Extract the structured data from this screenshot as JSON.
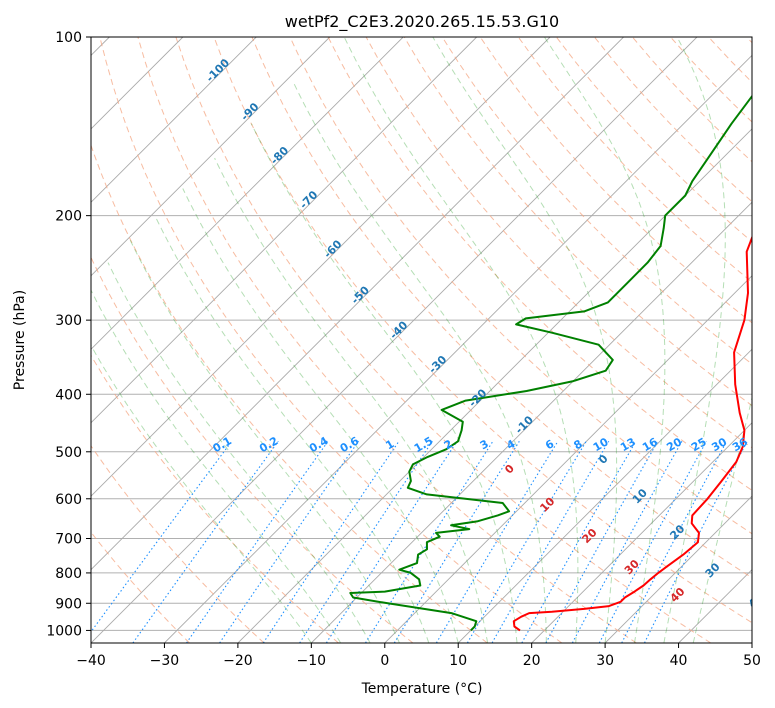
{
  "chart_data": {
    "type": "line",
    "subtype": "skew-T log-P diagram",
    "title": "wetPf2_C2E3.2020.265.15.53.G10",
    "xlabel": "Temperature (°C)",
    "ylabel": "Pressure (hPa)",
    "xlim": [
      -40,
      50
    ],
    "ylim": [
      1050,
      100
    ],
    "y_scale": "log",
    "x_ticks": [
      "−40",
      "−30",
      "−20",
      "−10",
      "0",
      "10",
      "20",
      "30",
      "40",
      "50"
    ],
    "y_ticks": [
      "100",
      "200",
      "300",
      "400",
      "500",
      "600",
      "700",
      "800",
      "900",
      "1000"
    ],
    "y_tick_values": [
      100,
      200,
      300,
      400,
      500,
      600,
      700,
      800,
      900,
      1000
    ],
    "grid": true,
    "colors": {
      "temperature": "#ff0000",
      "dewpoint": "#008000",
      "dry_adiabat": "#1f77b4",
      "moist_adiabat": "#d62728",
      "mixing_ratio": "#1e90ff",
      "isotherm": "#999999"
    },
    "series": [
      {
        "id": "temperature",
        "color": "#ff0000",
        "points": [
          [
            16.7,
            1000
          ],
          [
            15.4,
            985
          ],
          [
            14.6,
            965
          ],
          [
            15.0,
            948
          ],
          [
            15.6,
            935
          ],
          [
            18.5,
            930
          ],
          [
            22.5,
            920
          ],
          [
            25.5,
            910
          ],
          [
            26.5,
            895
          ],
          [
            26.5,
            880
          ],
          [
            27.0,
            860
          ],
          [
            27.4,
            840
          ],
          [
            27.5,
            820
          ],
          [
            27.7,
            800
          ],
          [
            28.0,
            780
          ],
          [
            28.6,
            745
          ],
          [
            28.9,
            710
          ],
          [
            27.8,
            685
          ],
          [
            25.5,
            660
          ],
          [
            24.5,
            640
          ],
          [
            24.3,
            600
          ],
          [
            23.8,
            560
          ],
          [
            23.2,
            520
          ],
          [
            22.0,
            490
          ],
          [
            20.0,
            460
          ],
          [
            17.0,
            430
          ],
          [
            12.5,
            385
          ],
          [
            8.0,
            340
          ],
          [
            5.0,
            300
          ],
          [
            1.8,
            270
          ],
          [
            -4.0,
            230
          ],
          [
            -6.5,
            205
          ],
          [
            -8.0,
            190
          ],
          [
            -11.0,
            170
          ],
          [
            -14.5,
            150
          ],
          [
            -17.5,
            135
          ],
          [
            -19.5,
            125
          ],
          [
            -19.0,
            120
          ],
          [
            -17.5,
            115
          ],
          [
            -16.0,
            108
          ],
          [
            -15.5,
            100
          ]
        ]
      },
      {
        "id": "dewpoint",
        "color": "#008000",
        "points": [
          [
            10.0,
            1000
          ],
          [
            10.0,
            985
          ],
          [
            9.5,
            965
          ],
          [
            5.0,
            935
          ],
          [
            -5.0,
            900
          ],
          [
            -10.5,
            880
          ],
          [
            -11.5,
            865
          ],
          [
            -7.0,
            860
          ],
          [
            -3.0,
            840
          ],
          [
            -4.0,
            820
          ],
          [
            -6.0,
            800
          ],
          [
            -8.0,
            790
          ],
          [
            -6.5,
            770
          ],
          [
            -7.5,
            745
          ],
          [
            -7.0,
            730
          ],
          [
            -8.0,
            710
          ],
          [
            -7.0,
            695
          ],
          [
            -8.0,
            685
          ],
          [
            -4.0,
            675
          ],
          [
            -7.0,
            665
          ],
          [
            -4.0,
            655
          ],
          [
            -2.0,
            640
          ],
          [
            -1.0,
            630
          ],
          [
            -3.0,
            610
          ],
          [
            -14.5,
            590
          ],
          [
            -18.0,
            575
          ],
          [
            -18.5,
            560
          ],
          [
            -20.0,
            540
          ],
          [
            -20.5,
            525
          ],
          [
            -19.5,
            510
          ],
          [
            -18.0,
            495
          ],
          [
            -17.5,
            480
          ],
          [
            -18.5,
            460
          ],
          [
            -19.5,
            445
          ],
          [
            -24.0,
            425
          ],
          [
            -22.0,
            410
          ],
          [
            -15.0,
            395
          ],
          [
            -10.0,
            380
          ],
          [
            -7.0,
            365
          ],
          [
            -7.5,
            350
          ],
          [
            -11.5,
            330
          ],
          [
            -19.5,
            315
          ],
          [
            -25.5,
            305
          ],
          [
            -25.0,
            298
          ],
          [
            -18.0,
            290
          ],
          [
            -16.0,
            280
          ],
          [
            -16.0,
            260
          ],
          [
            -16.0,
            240
          ],
          [
            -16.5,
            225
          ],
          [
            -18.5,
            210
          ],
          [
            -20.0,
            200
          ],
          [
            -20.0,
            185
          ],
          [
            -21.0,
            175
          ],
          [
            -22.0,
            160
          ],
          [
            -23.5,
            140
          ],
          [
            -24.5,
            125
          ],
          [
            -25.0,
            115
          ],
          [
            -24.0,
            108
          ],
          [
            -22.5,
            100
          ]
        ]
      }
    ],
    "dry_adiabat_labels": [
      "-100",
      "-90",
      "-80",
      "-70",
      "-60",
      "-50",
      "-40",
      "-30",
      "-20",
      "-10",
      "0",
      "10",
      "20",
      "30",
      "40"
    ],
    "moist_adiabat_labels": [
      "0",
      "10",
      "20",
      "30",
      "40"
    ],
    "mixing_ratio_labels": [
      "0.1",
      "0.2",
      "0.4",
      "0.6",
      "1",
      "1.5",
      "2",
      "3",
      "4",
      "6",
      "8",
      "10",
      "13",
      "16",
      "20",
      "25",
      "30",
      "36"
    ],
    "mixing_ratio_values": [
      0.1,
      0.2,
      0.4,
      0.6,
      1,
      1.5,
      2,
      3,
      4,
      6,
      8,
      10,
      13,
      16,
      20,
      25,
      30,
      36
    ]
  }
}
